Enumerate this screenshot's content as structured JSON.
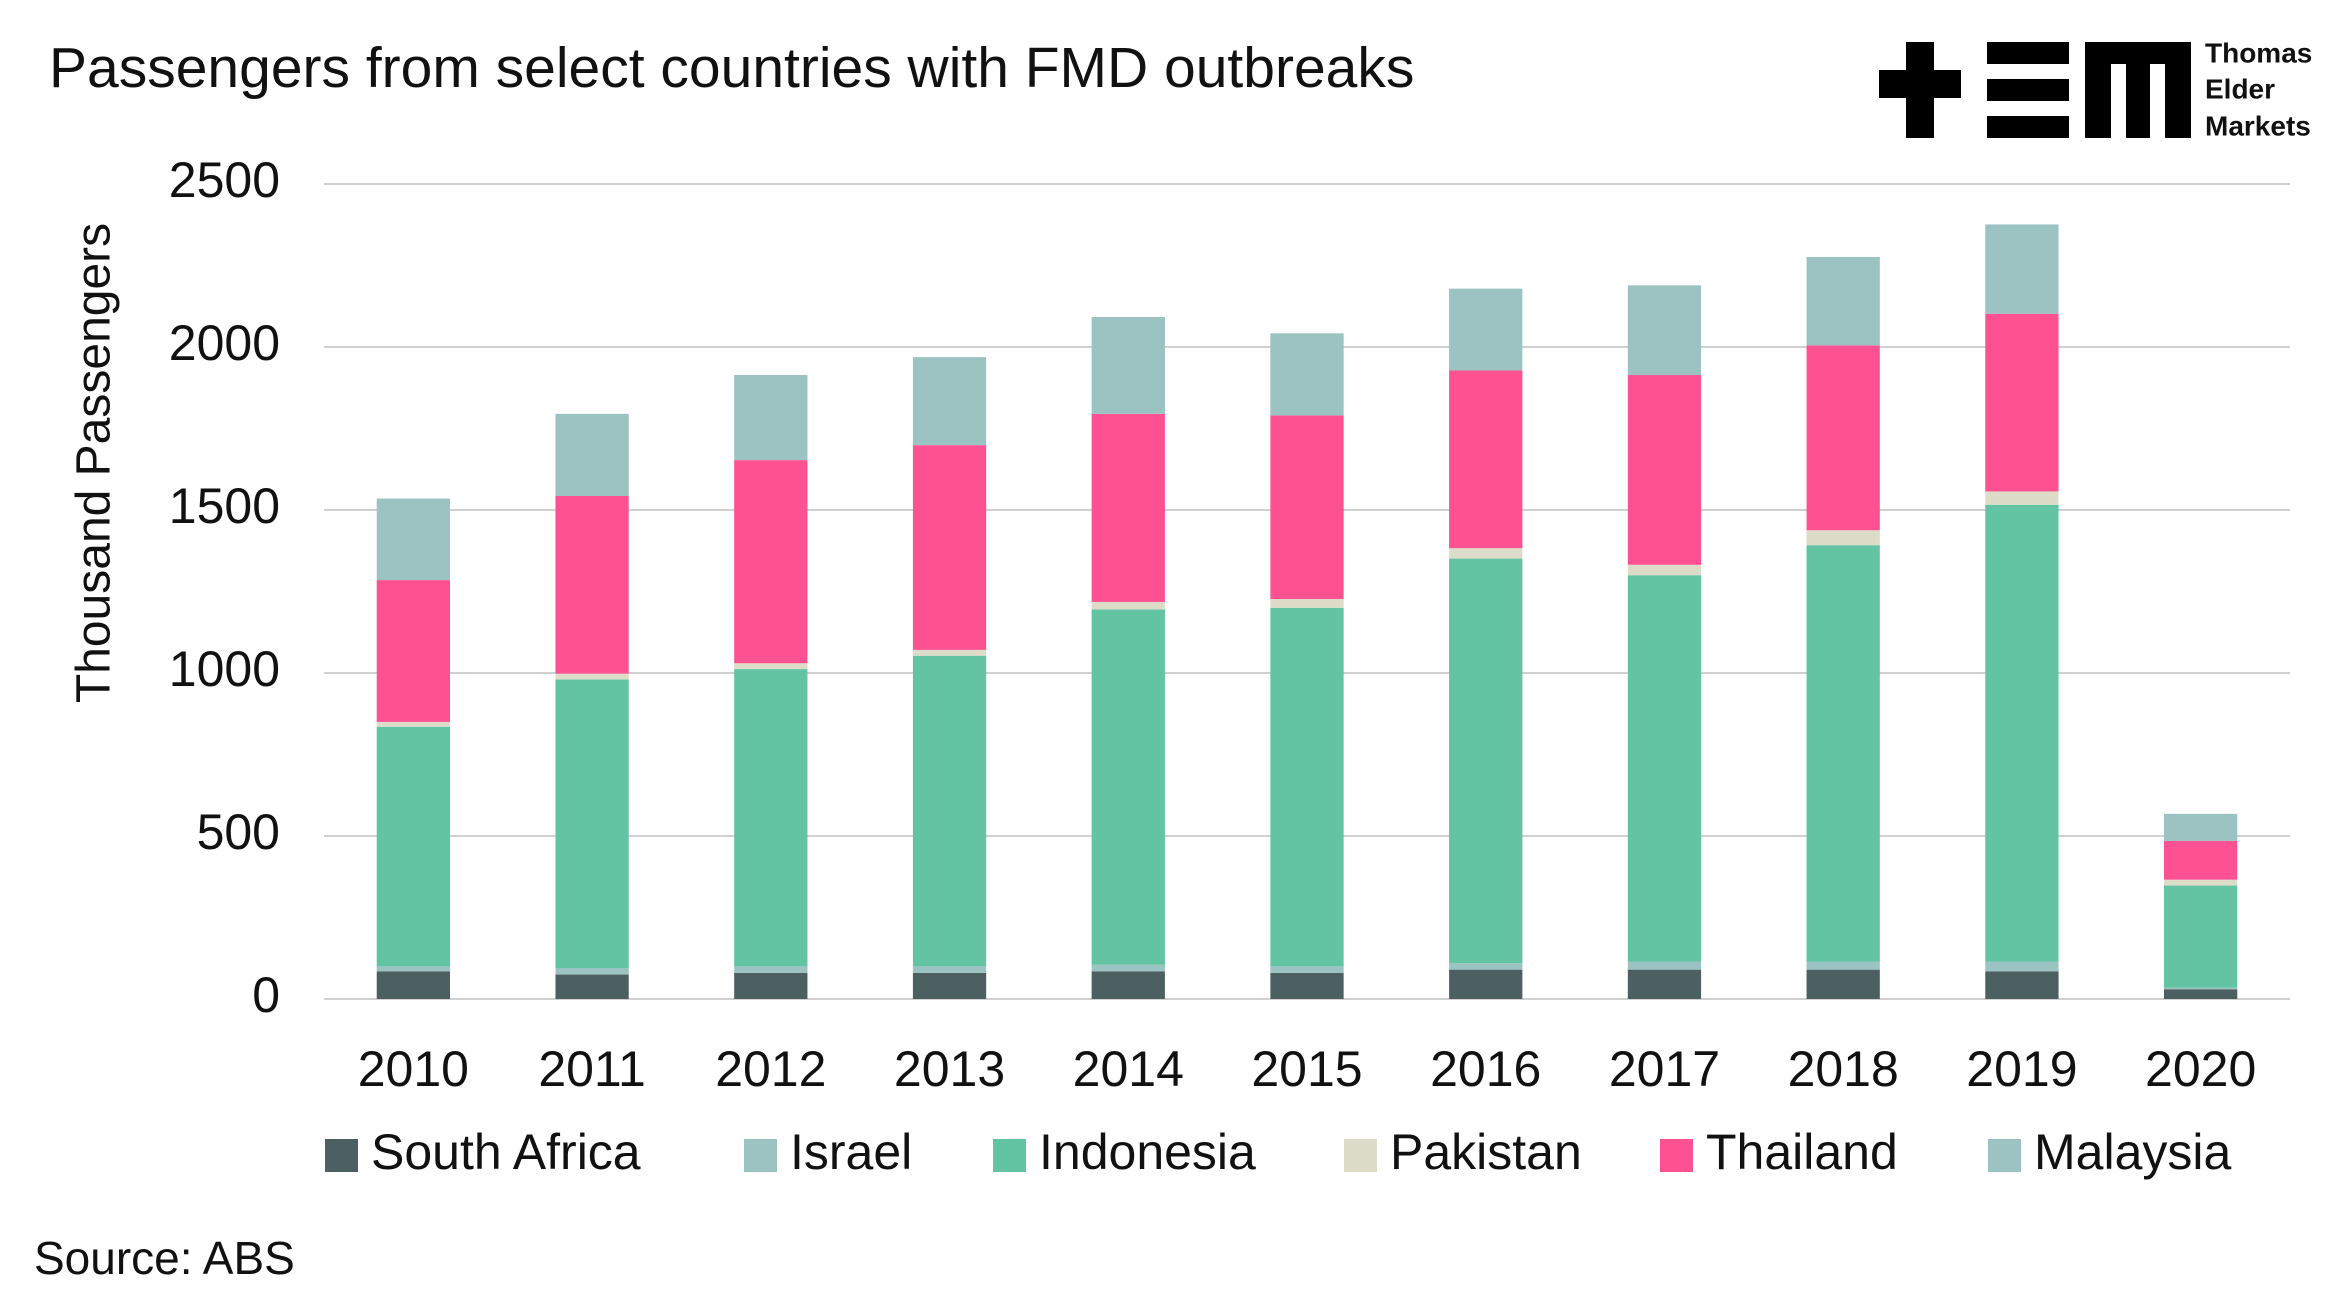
{
  "chart_data": {
    "type": "stacked_bar",
    "title": "Passengers from select countries with FMD outbreaks",
    "y_label": "Thousand Passengers",
    "source": "Source: ABS",
    "logo_text": [
      "Thomas",
      "Elder",
      "Markets"
    ],
    "categories": [
      "2010",
      "2011",
      "2012",
      "2013",
      "2014",
      "2015",
      "2016",
      "2017",
      "2018",
      "2019",
      "2020"
    ],
    "series": [
      {
        "name": "South Africa",
        "color": "#4d6061",
        "values": [
          85,
          75,
          80,
          80,
          85,
          80,
          90,
          90,
          90,
          85,
          30
        ]
      },
      {
        "name": "Israel",
        "color": "#9ac3c1",
        "values": [
          15,
          20,
          20,
          20,
          20,
          20,
          20,
          25,
          25,
          30,
          5
        ]
      },
      {
        "name": "Indonesia",
        "color": "#63c4a4",
        "values": [
          735,
          885,
          912,
          953,
          1090,
          1100,
          1241,
          1185,
          1277,
          1401,
          313
        ]
      },
      {
        "name": "Pakistan",
        "color": "#dcdcc8",
        "values": [
          15,
          18,
          18,
          18,
          23,
          27,
          32,
          32,
          46,
          41,
          18
        ]
      },
      {
        "name": "Thailand",
        "color": "#fd5192",
        "values": [
          435,
          545,
          623,
          628,
          577,
          563,
          545,
          582,
          567,
          545,
          119
        ]
      },
      {
        "name": "Malaysia",
        "color": "#9ac3c1",
        "values": [
          250,
          252,
          261,
          270,
          297,
          252,
          251,
          275,
          271,
          274,
          83
        ]
      }
    ],
    "ylim": [
      0,
      2500
    ],
    "yticks": [
      0,
      500,
      1000,
      1500,
      2000,
      2500
    ],
    "grid": true,
    "legend": "bottom"
  }
}
